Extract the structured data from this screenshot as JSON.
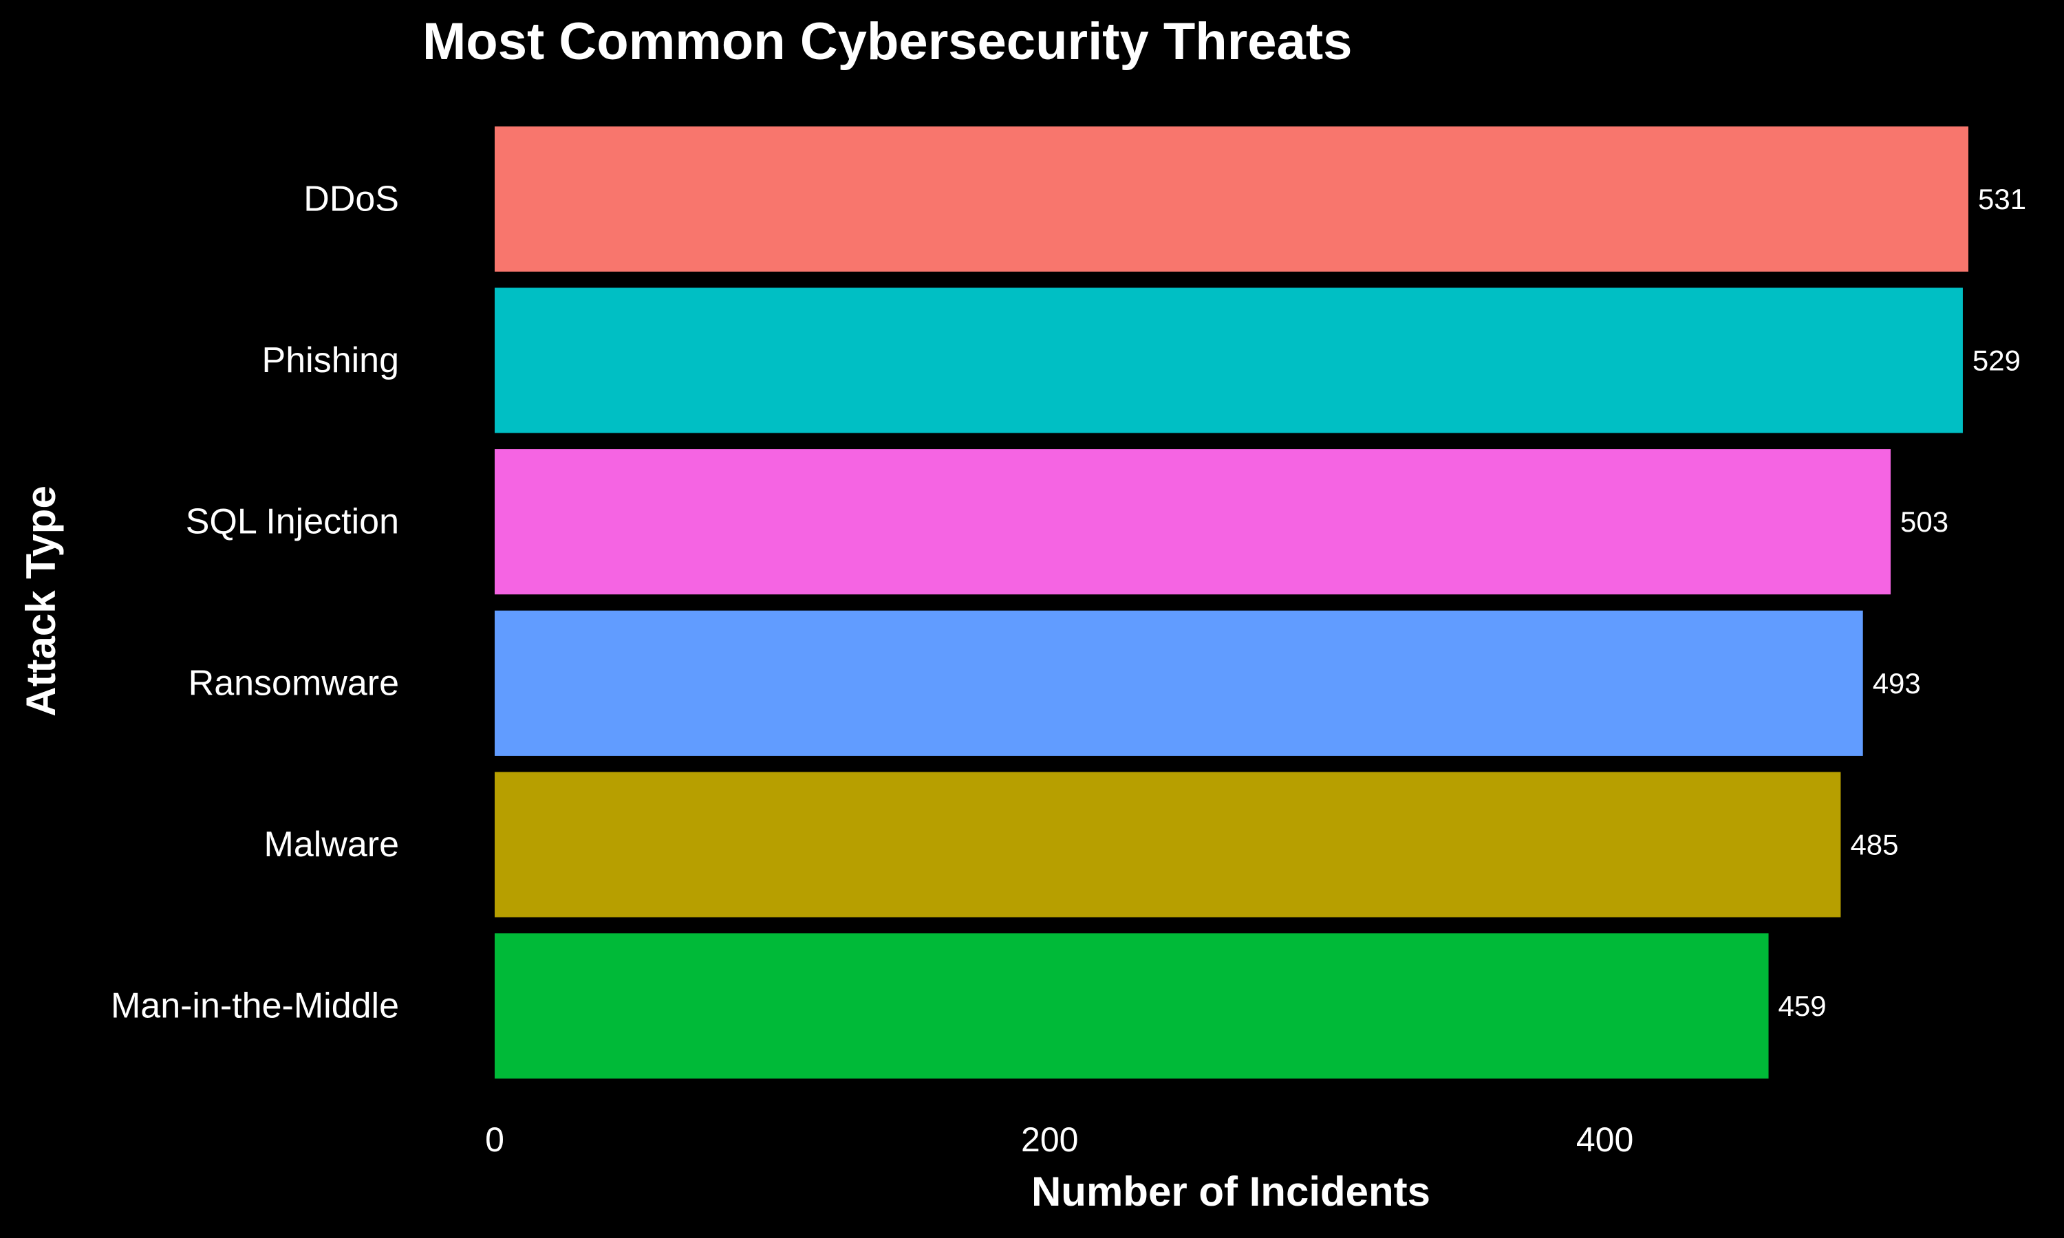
{
  "chart_data": {
    "type": "bar",
    "orientation": "horizontal",
    "title": "Most Common Cybersecurity Threats",
    "xlabel": "Number of Incidents",
    "ylabel": "Attack Type",
    "categories": [
      "DDoS",
      "Phishing",
      "SQL Injection",
      "Ransomware",
      "Malware",
      "Man-in-the-Middle"
    ],
    "values": [
      531,
      529,
      503,
      493,
      485,
      459
    ],
    "value_labels": [
      "531",
      "529",
      "503",
      "493",
      "485",
      "459"
    ],
    "colors": [
      "#F8766D",
      "#00BFC4",
      "#F564E3",
      "#619CFF",
      "#B79F00",
      "#00BA38"
    ],
    "xlim": [
      0,
      531
    ],
    "xticks": [
      0,
      200,
      400
    ],
    "xtick_labels": [
      "0",
      "200",
      "400"
    ],
    "grid": false,
    "legend": "none",
    "background": "#000000",
    "text_color": "#ffffff"
  }
}
